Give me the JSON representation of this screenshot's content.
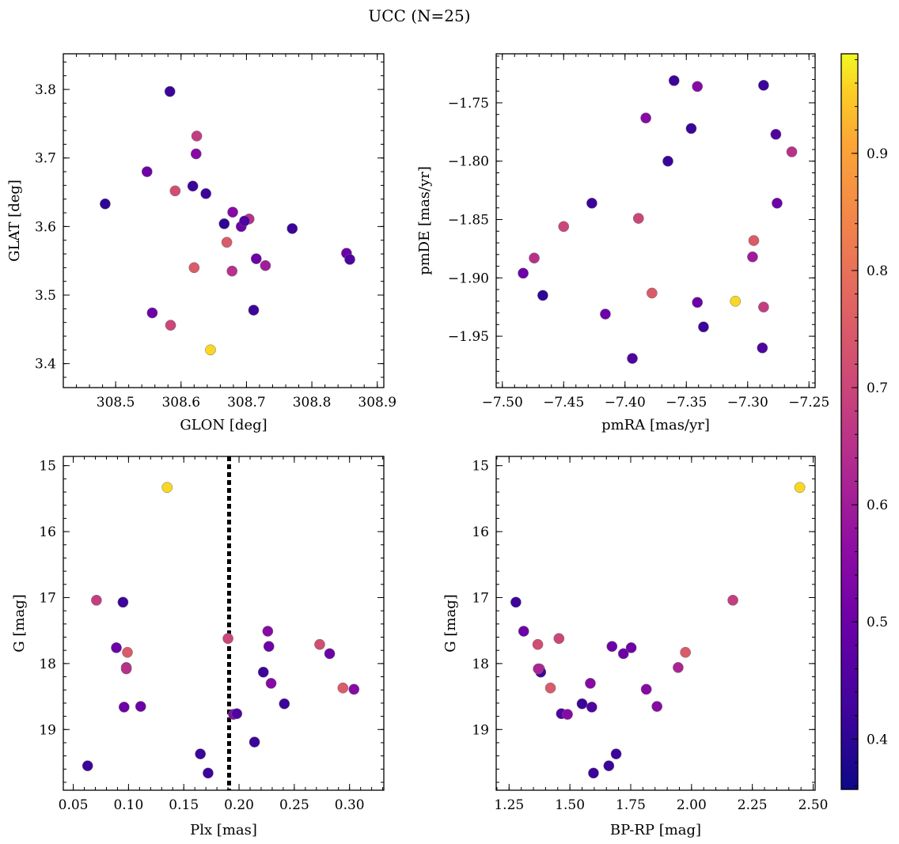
{
  "figure": {
    "title": "UCC (N=25)"
  },
  "colormap": {
    "name": "plasma",
    "range": [
      0.357,
      0.985
    ],
    "ticks": [
      0.4,
      0.5,
      0.6,
      0.7,
      0.8,
      0.9
    ],
    "tick_labels": [
      "0.4",
      "0.5",
      "0.6",
      "0.7",
      "0.8",
      "0.9"
    ]
  },
  "chart_data": [
    {
      "type": "scatter",
      "xlabel": "GLON [deg]",
      "ylabel": "GLAT [deg]",
      "xlim": [
        308.42,
        308.91
      ],
      "ylim": [
        3.365,
        3.852
      ],
      "xticks": [
        308.5,
        308.6,
        308.7,
        308.8,
        308.9
      ],
      "xtick_labels": [
        "308.5",
        "308.6",
        "308.7",
        "308.8",
        "308.9"
      ],
      "yticks": [
        3.4,
        3.5,
        3.6,
        3.7,
        3.8
      ],
      "ytick_labels": [
        "3.4",
        "3.5",
        "3.6",
        "3.7",
        "3.8"
      ],
      "x": [
        308.484,
        308.583,
        308.624,
        308.548,
        308.591,
        308.618,
        308.638,
        308.666,
        308.679,
        308.704,
        308.692,
        308.697,
        308.77,
        308.67,
        308.715,
        308.62,
        308.678,
        308.729,
        308.853,
        308.858,
        308.556,
        308.711,
        308.584,
        308.645,
        308.623
      ],
      "y": [
        3.633,
        3.797,
        3.732,
        3.68,
        3.652,
        3.659,
        3.648,
        3.604,
        3.621,
        3.611,
        3.6,
        3.608,
        3.597,
        3.577,
        3.553,
        3.54,
        3.535,
        3.543,
        3.561,
        3.552,
        3.474,
        3.478,
        3.456,
        3.42,
        3.706
      ],
      "c": [
        0.4,
        0.42,
        0.68,
        0.5,
        0.72,
        0.42,
        0.42,
        0.4,
        0.55,
        0.65,
        0.5,
        0.45,
        0.42,
        0.75,
        0.5,
        0.75,
        0.65,
        0.6,
        0.5,
        0.45,
        0.5,
        0.42,
        0.7,
        0.96,
        0.55
      ]
    },
    {
      "type": "scatter",
      "xlabel": "pmRA [mas/yr]",
      "ylabel": "pmDE [mas/yr]",
      "xlim": [
        -7.505,
        -7.245
      ],
      "ylim": [
        -1.994,
        -1.708
      ],
      "xticks": [
        -7.5,
        -7.45,
        -7.4,
        -7.35,
        -7.3,
        -7.25
      ],
      "xtick_labels": [
        "−7.50",
        "−7.45",
        "−7.40",
        "−7.35",
        "−7.30",
        "−7.25"
      ],
      "yticks": [
        -1.95,
        -1.9,
        -1.85,
        -1.8,
        -1.75
      ],
      "ytick_labels": [
        "−1.95",
        "−1.90",
        "−1.85",
        "−1.80",
        "−1.75"
      ],
      "x": [
        -7.36,
        -7.341,
        -7.287,
        -7.383,
        -7.346,
        -7.277,
        -7.264,
        -7.365,
        -7.427,
        -7.389,
        -7.45,
        -7.276,
        -7.295,
        -7.474,
        -7.296,
        -7.483,
        -7.467,
        -7.378,
        -7.341,
        -7.31,
        -7.287,
        -7.416,
        -7.336,
        -7.288,
        -7.394
      ],
      "y": [
        -1.731,
        -1.736,
        -1.735,
        -1.763,
        -1.772,
        -1.777,
        -1.792,
        -1.8,
        -1.836,
        -1.849,
        -1.856,
        -1.836,
        -1.868,
        -1.883,
        -1.882,
        -1.896,
        -1.915,
        -1.913,
        -1.921,
        -1.92,
        -1.925,
        -1.931,
        -1.942,
        -1.96,
        -1.969
      ],
      "c": [
        0.42,
        0.55,
        0.42,
        0.55,
        0.42,
        0.45,
        0.65,
        0.42,
        0.42,
        0.7,
        0.7,
        0.5,
        0.75,
        0.65,
        0.6,
        0.5,
        0.4,
        0.75,
        0.5,
        0.96,
        0.68,
        0.5,
        0.42,
        0.45,
        0.45
      ]
    },
    {
      "type": "scatter",
      "xlabel": "Plx [mas]",
      "ylabel": "G [mag]",
      "xlim": [
        0.041,
        0.331
      ],
      "ylim": [
        19.92,
        14.86
      ],
      "xticks": [
        0.05,
        0.1,
        0.15,
        0.2,
        0.25,
        0.3
      ],
      "xtick_labels": [
        "0.05",
        "0.10",
        "0.15",
        "0.20",
        "0.25",
        "0.30"
      ],
      "yticks": [
        15,
        16,
        17,
        18,
        19
      ],
      "ytick_labels": [
        "15",
        "16",
        "17",
        "18",
        "19"
      ],
      "vline": 0.191,
      "x": [
        0.135,
        0.071,
        0.095,
        0.089,
        0.099,
        0.098,
        0.098,
        0.096,
        0.111,
        0.063,
        0.165,
        0.172,
        0.19,
        0.195,
        0.198,
        0.226,
        0.227,
        0.222,
        0.229,
        0.214,
        0.241,
        0.273,
        0.282,
        0.294,
        0.304
      ],
      "y": [
        15.33,
        17.04,
        17.07,
        17.76,
        17.83,
        18.06,
        18.08,
        18.66,
        18.65,
        19.55,
        19.37,
        19.66,
        17.62,
        18.77,
        18.76,
        17.51,
        17.74,
        18.13,
        18.3,
        19.19,
        18.61,
        17.71,
        17.85,
        18.37,
        18.39
      ],
      "c": [
        0.96,
        0.68,
        0.42,
        0.5,
        0.75,
        0.62,
        0.65,
        0.5,
        0.5,
        0.42,
        0.42,
        0.42,
        0.7,
        0.55,
        0.45,
        0.55,
        0.5,
        0.42,
        0.55,
        0.42,
        0.42,
        0.72,
        0.5,
        0.75,
        0.55
      ]
    },
    {
      "type": "scatter",
      "xlabel": "BP-RP [mag]",
      "ylabel": "G [mag]",
      "xlim": [
        1.197,
        2.508
      ],
      "ylim": [
        19.92,
        14.86
      ],
      "xticks": [
        1.25,
        1.5,
        1.75,
        2.0,
        2.25,
        2.5
      ],
      "xtick_labels": [
        "1.25",
        "1.50",
        "1.75",
        "2.00",
        "2.25",
        "2.50"
      ],
      "yticks": [
        15,
        16,
        17,
        18,
        19
      ],
      "ytick_labels": [
        "15",
        "16",
        "17",
        "18",
        "19"
      ],
      "x": [
        2.445,
        2.17,
        1.278,
        1.31,
        1.368,
        1.455,
        1.673,
        1.752,
        1.72,
        1.975,
        1.375,
        1.38,
        1.945,
        1.42,
        1.584,
        1.814,
        1.55,
        1.59,
        1.858,
        1.465,
        1.49,
        1.69,
        1.66,
        1.597,
        1.37
      ],
      "y": [
        15.33,
        17.04,
        17.07,
        17.51,
        17.71,
        17.62,
        17.74,
        17.76,
        17.85,
        17.83,
        18.08,
        18.13,
        18.06,
        18.37,
        18.3,
        18.39,
        18.61,
        18.66,
        18.65,
        18.76,
        18.77,
        19.37,
        19.55,
        19.66,
        18.08
      ],
      "c": [
        0.96,
        0.68,
        0.42,
        0.5,
        0.72,
        0.7,
        0.5,
        0.5,
        0.5,
        0.75,
        0.65,
        0.42,
        0.62,
        0.75,
        0.55,
        0.55,
        0.42,
        0.45,
        0.55,
        0.45,
        0.55,
        0.42,
        0.42,
        0.42,
        0.62
      ]
    }
  ]
}
